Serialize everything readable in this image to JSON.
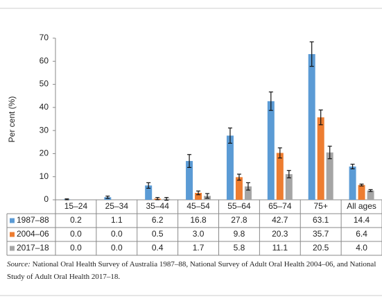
{
  "chart_data": {
    "type": "bar",
    "y_label": "Per cent (%)",
    "categories": [
      "15–24",
      "25–34",
      "35–44",
      "45–54",
      "55–64",
      "65–74",
      "75+",
      "All ages"
    ],
    "ylim": [
      0,
      70
    ],
    "yticks": [
      0,
      10,
      20,
      30,
      40,
      50,
      60,
      70
    ],
    "series": [
      {
        "name": "1987–88",
        "color": "#5b9bd5",
        "values": [
          0.2,
          1.1,
          6.2,
          16.8,
          27.8,
          42.7,
          63.1,
          14.4
        ],
        "value_labels": [
          "0.2",
          "1.1",
          "6.2",
          "16.8",
          "27.8",
          "42.7",
          "63.1",
          "14.4"
        ],
        "errors": [
          0.2,
          0.5,
          1.2,
          2.8,
          3.3,
          4.0,
          5.3,
          1.0
        ]
      },
      {
        "name": "2004–06",
        "color": "#ed7d31",
        "values": [
          0,
          0,
          0.5,
          3.0,
          9.8,
          20.3,
          35.7,
          6.4
        ],
        "value_labels": [
          "0.0",
          "0.0",
          "0.5",
          "3.0",
          "9.8",
          "20.3",
          "35.7",
          "6.4"
        ],
        "errors": [
          null,
          null,
          0.5,
          0.8,
          1.3,
          2.2,
          3.2,
          0.4
        ]
      },
      {
        "name": "2017–18",
        "color": "#a5a5a5",
        "values": [
          0,
          0,
          0.4,
          1.7,
          5.8,
          11.1,
          20.5,
          4.0
        ],
        "value_labels": [
          "0.0",
          "0.0",
          "0.4",
          "1.7",
          "5.8",
          "11.1",
          "20.5",
          "4.0"
        ],
        "errors": [
          null,
          null,
          0.6,
          1.0,
          1.6,
          1.6,
          2.7,
          0.4
        ]
      }
    ],
    "source_label": "Source:",
    "source": "National Oral Health Survey of Australia 1987–88, National Survey of Adult Oral Health 2004–06, and National Study of Adult Oral Health 2017–18."
  }
}
